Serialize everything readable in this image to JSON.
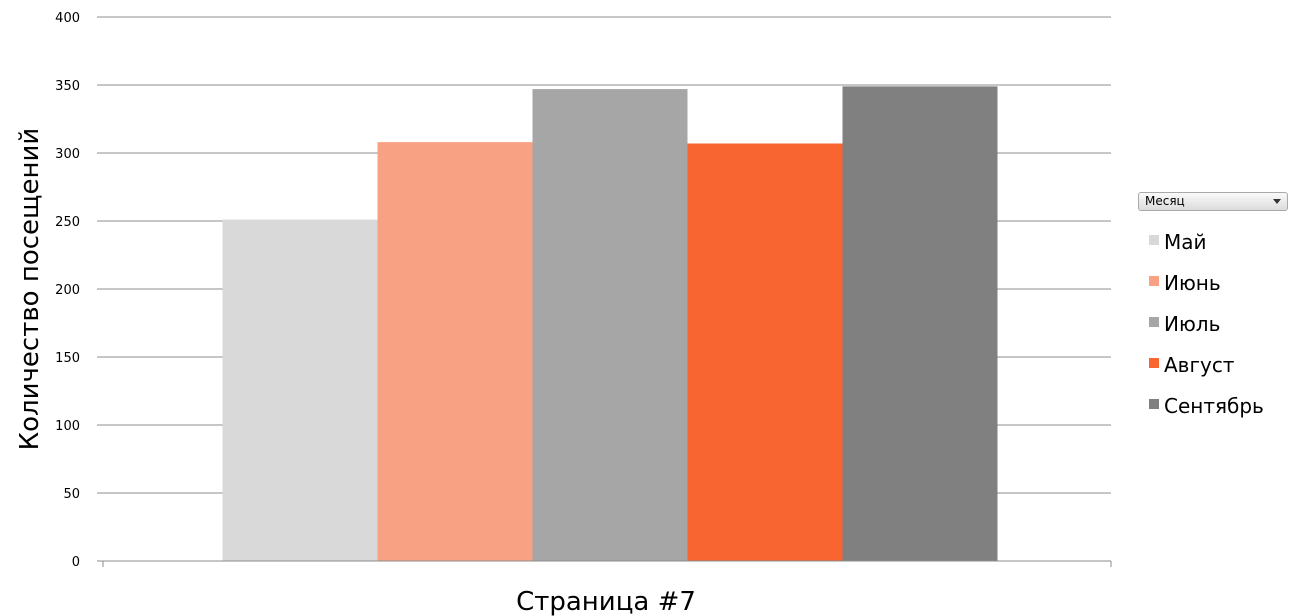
{
  "filter": {
    "label": "Месяц"
  },
  "chart_data": {
    "type": "bar",
    "title": "",
    "xlabel": "Страница #7",
    "ylabel": "Количество посещений",
    "ylim": [
      0,
      400
    ],
    "yticks": [
      0,
      50,
      100,
      150,
      200,
      250,
      300,
      350,
      400
    ],
    "grid": true,
    "legend_position": "right",
    "categories": [
      "Страница #7"
    ],
    "series": [
      {
        "name": "Май",
        "values": [
          251
        ],
        "color": "#d9d9d9"
      },
      {
        "name": "Июнь",
        "values": [
          308
        ],
        "color": "#f9a183"
      },
      {
        "name": "Июль",
        "values": [
          347
        ],
        "color": "#a6a6a6"
      },
      {
        "name": "Август",
        "values": [
          307
        ],
        "color": "#f96530"
      },
      {
        "name": "Сентябрь",
        "values": [
          349
        ],
        "color": "#808080"
      }
    ]
  }
}
